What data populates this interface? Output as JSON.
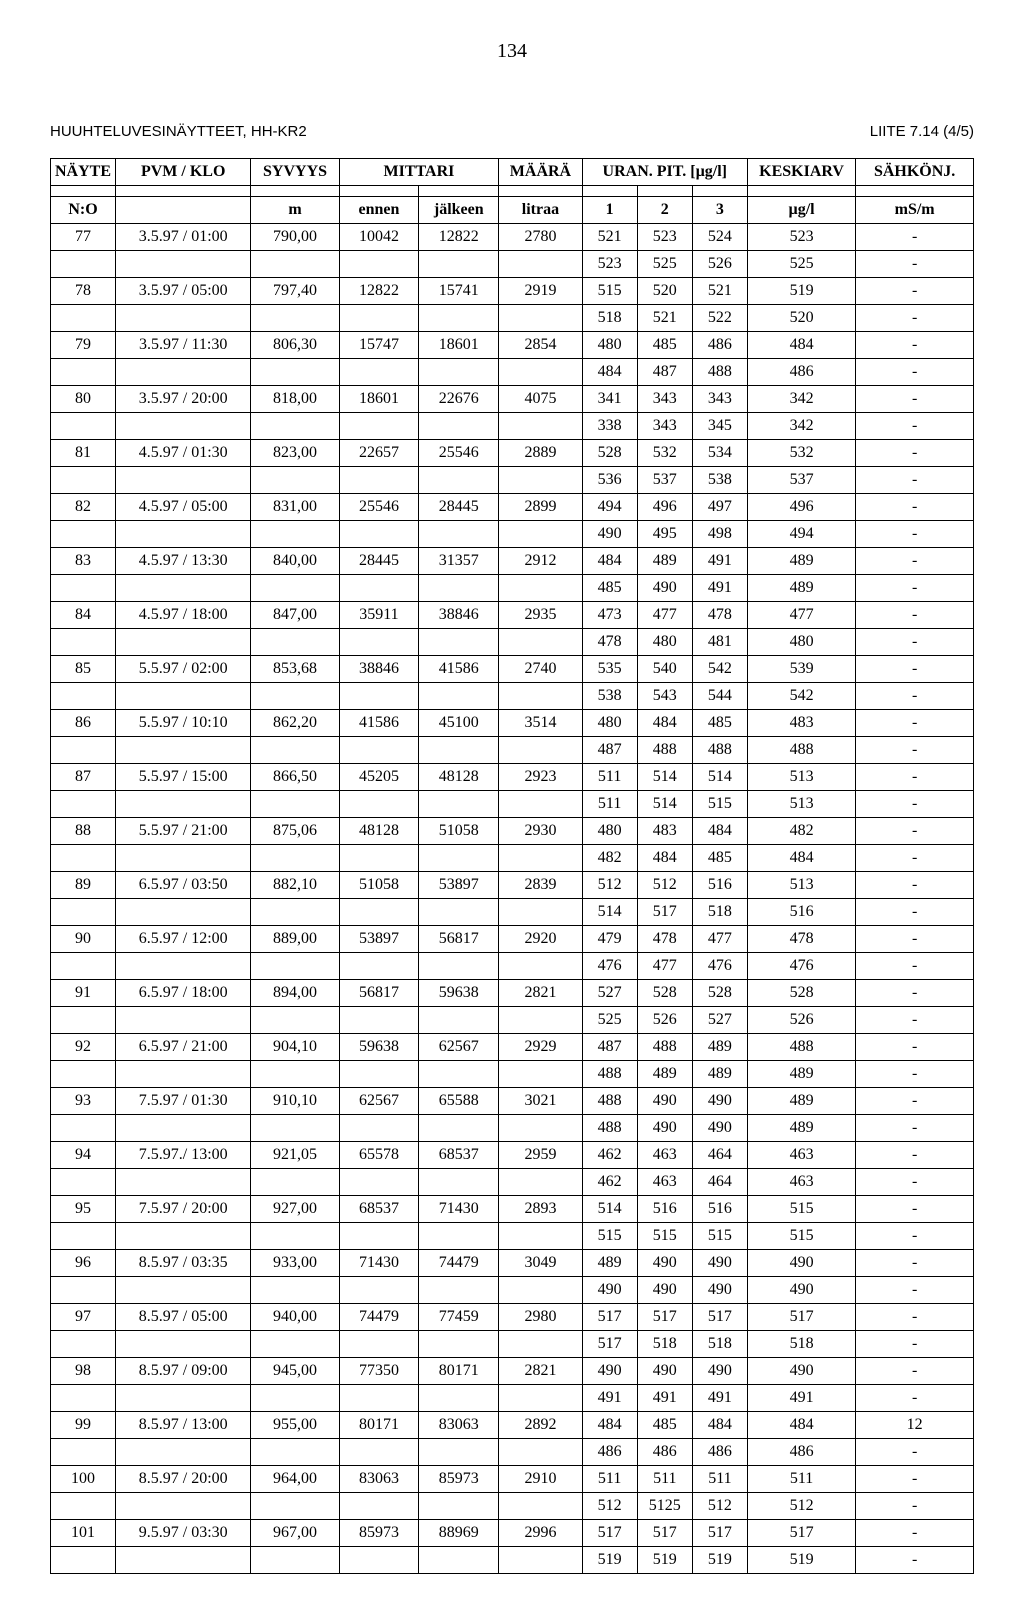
{
  "pageNumber": "134",
  "docTitle": "HUUHTELUVESINÄYTTEET, HH-KR2",
  "annex": "LIITE 7.14 (4/5)",
  "headers": {
    "nayte": "NÄYTE",
    "pvm": "PVM / KLO",
    "syvyys": "SYVYYS",
    "mittari": "MITTARI",
    "maara": "MÄÄRÄ",
    "uran": "URAN. PIT. [µg/l]",
    "keskiarv": "KESKIARV",
    "sahkonj": "SÄHKÖNJ.",
    "no": "N:O",
    "m": "m",
    "ennen": "ennen",
    "jalkeen": "jälkeen",
    "litraa": "litraa",
    "c1": "1",
    "c2": "2",
    "c3": "3",
    "ugl": "µg/l",
    "msm": "mS/m"
  },
  "rows": [
    {
      "no": "77",
      "pvm": "3.5.97 / 01:00",
      "syv": "790,00",
      "ennen": "10042",
      "jalkeen": "12822",
      "maara": "2780",
      "u1": "521",
      "u2": "523",
      "u3": "524",
      "kesk": "523",
      "sah": "-"
    },
    {
      "no": "",
      "pvm": "",
      "syv": "",
      "ennen": "",
      "jalkeen": "",
      "maara": "",
      "u1": "523",
      "u2": "525",
      "u3": "526",
      "kesk": "525",
      "sah": "-"
    },
    {
      "no": "78",
      "pvm": "3.5.97 / 05:00",
      "syv": "797,40",
      "ennen": "12822",
      "jalkeen": "15741",
      "maara": "2919",
      "u1": "515",
      "u2": "520",
      "u3": "521",
      "kesk": "519",
      "sah": "-"
    },
    {
      "no": "",
      "pvm": "",
      "syv": "",
      "ennen": "",
      "jalkeen": "",
      "maara": "",
      "u1": "518",
      "u2": "521",
      "u3": "522",
      "kesk": "520",
      "sah": "-"
    },
    {
      "no": "79",
      "pvm": "3.5.97 / 11:30",
      "syv": "806,30",
      "ennen": "15747",
      "jalkeen": "18601",
      "maara": "2854",
      "u1": "480",
      "u2": "485",
      "u3": "486",
      "kesk": "484",
      "sah": "-"
    },
    {
      "no": "",
      "pvm": "",
      "syv": "",
      "ennen": "",
      "jalkeen": "",
      "maara": "",
      "u1": "484",
      "u2": "487",
      "u3": "488",
      "kesk": "486",
      "sah": "-"
    },
    {
      "no": "80",
      "pvm": "3.5.97 / 20:00",
      "syv": "818,00",
      "ennen": "18601",
      "jalkeen": "22676",
      "maara": "4075",
      "u1": "341",
      "u2": "343",
      "u3": "343",
      "kesk": "342",
      "sah": "-"
    },
    {
      "no": "",
      "pvm": "",
      "syv": "",
      "ennen": "",
      "jalkeen": "",
      "maara": "",
      "u1": "338",
      "u2": "343",
      "u3": "345",
      "kesk": "342",
      "sah": "-"
    },
    {
      "no": "81",
      "pvm": "4.5.97 / 01:30",
      "syv": "823,00",
      "ennen": "22657",
      "jalkeen": "25546",
      "maara": "2889",
      "u1": "528",
      "u2": "532",
      "u3": "534",
      "kesk": "532",
      "sah": "-"
    },
    {
      "no": "",
      "pvm": "",
      "syv": "",
      "ennen": "",
      "jalkeen": "",
      "maara": "",
      "u1": "536",
      "u2": "537",
      "u3": "538",
      "kesk": "537",
      "sah": "-"
    },
    {
      "no": "82",
      "pvm": "4.5.97 / 05:00",
      "syv": "831,00",
      "ennen": "25546",
      "jalkeen": "28445",
      "maara": "2899",
      "u1": "494",
      "u2": "496",
      "u3": "497",
      "kesk": "496",
      "sah": "-"
    },
    {
      "no": "",
      "pvm": "",
      "syv": "",
      "ennen": "",
      "jalkeen": "",
      "maara": "",
      "u1": "490",
      "u2": "495",
      "u3": "498",
      "kesk": "494",
      "sah": "-"
    },
    {
      "no": "83",
      "pvm": "4.5.97 / 13:30",
      "syv": "840,00",
      "ennen": "28445",
      "jalkeen": "31357",
      "maara": "2912",
      "u1": "484",
      "u2": "489",
      "u3": "491",
      "kesk": "489",
      "sah": "-"
    },
    {
      "no": "",
      "pvm": "",
      "syv": "",
      "ennen": "",
      "jalkeen": "",
      "maara": "",
      "u1": "485",
      "u2": "490",
      "u3": "491",
      "kesk": "489",
      "sah": "-"
    },
    {
      "no": "84",
      "pvm": "4.5.97 / 18:00",
      "syv": "847,00",
      "ennen": "35911",
      "jalkeen": "38846",
      "maara": "2935",
      "u1": "473",
      "u2": "477",
      "u3": "478",
      "kesk": "477",
      "sah": "-"
    },
    {
      "no": "",
      "pvm": "",
      "syv": "",
      "ennen": "",
      "jalkeen": "",
      "maara": "",
      "u1": "478",
      "u2": "480",
      "u3": "481",
      "kesk": "480",
      "sah": "-"
    },
    {
      "no": "85",
      "pvm": "5.5.97 / 02:00",
      "syv": "853,68",
      "ennen": "38846",
      "jalkeen": "41586",
      "maara": "2740",
      "u1": "535",
      "u2": "540",
      "u3": "542",
      "kesk": "539",
      "sah": "-"
    },
    {
      "no": "",
      "pvm": "",
      "syv": "",
      "ennen": "",
      "jalkeen": "",
      "maara": "",
      "u1": "538",
      "u2": "543",
      "u3": "544",
      "kesk": "542",
      "sah": "-"
    },
    {
      "no": "86",
      "pvm": "5.5.97 / 10:10",
      "syv": "862,20",
      "ennen": "41586",
      "jalkeen": "45100",
      "maara": "3514",
      "u1": "480",
      "u2": "484",
      "u3": "485",
      "kesk": "483",
      "sah": "-"
    },
    {
      "no": "",
      "pvm": "",
      "syv": "",
      "ennen": "",
      "jalkeen": "",
      "maara": "",
      "u1": "487",
      "u2": "488",
      "u3": "488",
      "kesk": "488",
      "sah": "-"
    },
    {
      "no": "87",
      "pvm": "5.5.97 / 15:00",
      "syv": "866,50",
      "ennen": "45205",
      "jalkeen": "48128",
      "maara": "2923",
      "u1": "511",
      "u2": "514",
      "u3": "514",
      "kesk": "513",
      "sah": "-"
    },
    {
      "no": "",
      "pvm": "",
      "syv": "",
      "ennen": "",
      "jalkeen": "",
      "maara": "",
      "u1": "511",
      "u2": "514",
      "u3": "515",
      "kesk": "513",
      "sah": "-"
    },
    {
      "no": "88",
      "pvm": "5.5.97 / 21:00",
      "syv": "875,06",
      "ennen": "48128",
      "jalkeen": "51058",
      "maara": "2930",
      "u1": "480",
      "u2": "483",
      "u3": "484",
      "kesk": "482",
      "sah": "-"
    },
    {
      "no": "",
      "pvm": "",
      "syv": "",
      "ennen": "",
      "jalkeen": "",
      "maara": "",
      "u1": "482",
      "u2": "484",
      "u3": "485",
      "kesk": "484",
      "sah": "-"
    },
    {
      "no": "89",
      "pvm": "6.5.97 / 03:50",
      "syv": "882,10",
      "ennen": "51058",
      "jalkeen": "53897",
      "maara": "2839",
      "u1": "512",
      "u2": "512",
      "u3": "516",
      "kesk": "513",
      "sah": "-"
    },
    {
      "no": "",
      "pvm": "",
      "syv": "",
      "ennen": "",
      "jalkeen": "",
      "maara": "",
      "u1": "514",
      "u2": "517",
      "u3": "518",
      "kesk": "516",
      "sah": "-"
    },
    {
      "no": "90",
      "pvm": "6.5.97 / 12:00",
      "syv": "889,00",
      "ennen": "53897",
      "jalkeen": "56817",
      "maara": "2920",
      "u1": "479",
      "u2": "478",
      "u3": "477",
      "kesk": "478",
      "sah": "-"
    },
    {
      "no": "",
      "pvm": "",
      "syv": "",
      "ennen": "",
      "jalkeen": "",
      "maara": "",
      "u1": "476",
      "u2": "477",
      "u3": "476",
      "kesk": "476",
      "sah": "-"
    },
    {
      "no": "91",
      "pvm": "6.5.97 / 18:00",
      "syv": "894,00",
      "ennen": "56817",
      "jalkeen": "59638",
      "maara": "2821",
      "u1": "527",
      "u2": "528",
      "u3": "528",
      "kesk": "528",
      "sah": "-"
    },
    {
      "no": "",
      "pvm": "",
      "syv": "",
      "ennen": "",
      "jalkeen": "",
      "maara": "",
      "u1": "525",
      "u2": "526",
      "u3": "527",
      "kesk": "526",
      "sah": "-"
    },
    {
      "no": "92",
      "pvm": "6.5.97 / 21:00",
      "syv": "904,10",
      "ennen": "59638",
      "jalkeen": "62567",
      "maara": "2929",
      "u1": "487",
      "u2": "488",
      "u3": "489",
      "kesk": "488",
      "sah": "-"
    },
    {
      "no": "",
      "pvm": "",
      "syv": "",
      "ennen": "",
      "jalkeen": "",
      "maara": "",
      "u1": "488",
      "u2": "489",
      "u3": "489",
      "kesk": "489",
      "sah": "-"
    },
    {
      "no": "93",
      "pvm": "7.5.97 / 01:30",
      "syv": "910,10",
      "ennen": "62567",
      "jalkeen": "65588",
      "maara": "3021",
      "u1": "488",
      "u2": "490",
      "u3": "490",
      "kesk": "489",
      "sah": "-"
    },
    {
      "no": "",
      "pvm": "",
      "syv": "",
      "ennen": "",
      "jalkeen": "",
      "maara": "",
      "u1": "488",
      "u2": "490",
      "u3": "490",
      "kesk": "489",
      "sah": "-"
    },
    {
      "no": "94",
      "pvm": "7.5.97./ 13:00",
      "syv": "921,05",
      "ennen": "65578",
      "jalkeen": "68537",
      "maara": "2959",
      "u1": "462",
      "u2": "463",
      "u3": "464",
      "kesk": "463",
      "sah": "-"
    },
    {
      "no": "",
      "pvm": "",
      "syv": "",
      "ennen": "",
      "jalkeen": "",
      "maara": "",
      "u1": "462",
      "u2": "463",
      "u3": "464",
      "kesk": "463",
      "sah": "-"
    },
    {
      "no": "95",
      "pvm": "7.5.97 / 20:00",
      "syv": "927,00",
      "ennen": "68537",
      "jalkeen": "71430",
      "maara": "2893",
      "u1": "514",
      "u2": "516",
      "u3": "516",
      "kesk": "515",
      "sah": "-"
    },
    {
      "no": "",
      "pvm": "",
      "syv": "",
      "ennen": "",
      "jalkeen": "",
      "maara": "",
      "u1": "515",
      "u2": "515",
      "u3": "515",
      "kesk": "515",
      "sah": "-"
    },
    {
      "no": "96",
      "pvm": "8.5.97 / 03:35",
      "syv": "933,00",
      "ennen": "71430",
      "jalkeen": "74479",
      "maara": "3049",
      "u1": "489",
      "u2": "490",
      "u3": "490",
      "kesk": "490",
      "sah": "-"
    },
    {
      "no": "",
      "pvm": "",
      "syv": "",
      "ennen": "",
      "jalkeen": "",
      "maara": "",
      "u1": "490",
      "u2": "490",
      "u3": "490",
      "kesk": "490",
      "sah": "-"
    },
    {
      "no": "97",
      "pvm": "8.5.97 / 05:00",
      "syv": "940,00",
      "ennen": "74479",
      "jalkeen": "77459",
      "maara": "2980",
      "u1": "517",
      "u2": "517",
      "u3": "517",
      "kesk": "517",
      "sah": "-"
    },
    {
      "no": "",
      "pvm": "",
      "syv": "",
      "ennen": "",
      "jalkeen": "",
      "maara": "",
      "u1": "517",
      "u2": "518",
      "u3": "518",
      "kesk": "518",
      "sah": "-"
    },
    {
      "no": "98",
      "pvm": "8.5.97 / 09:00",
      "syv": "945,00",
      "ennen": "77350",
      "jalkeen": "80171",
      "maara": "2821",
      "u1": "490",
      "u2": "490",
      "u3": "490",
      "kesk": "490",
      "sah": "-"
    },
    {
      "no": "",
      "pvm": "",
      "syv": "",
      "ennen": "",
      "jalkeen": "",
      "maara": "",
      "u1": "491",
      "u2": "491",
      "u3": "491",
      "kesk": "491",
      "sah": "-"
    },
    {
      "no": "99",
      "pvm": "8.5.97 / 13:00",
      "syv": "955,00",
      "ennen": "80171",
      "jalkeen": "83063",
      "maara": "2892",
      "u1": "484",
      "u2": "485",
      "u3": "484",
      "kesk": "484",
      "sah": "12"
    },
    {
      "no": "",
      "pvm": "",
      "syv": "",
      "ennen": "",
      "jalkeen": "",
      "maara": "",
      "u1": "486",
      "u2": "486",
      "u3": "486",
      "kesk": "486",
      "sah": "-"
    },
    {
      "no": "100",
      "pvm": "8.5.97 / 20:00",
      "syv": "964,00",
      "ennen": "83063",
      "jalkeen": "85973",
      "maara": "2910",
      "u1": "511",
      "u2": "511",
      "u3": "511",
      "kesk": "511",
      "sah": "-"
    },
    {
      "no": "",
      "pvm": "",
      "syv": "",
      "ennen": "",
      "jalkeen": "",
      "maara": "",
      "u1": "512",
      "u2": "5125",
      "u3": "512",
      "kesk": "512",
      "sah": "-"
    },
    {
      "no": "101",
      "pvm": "9.5.97 / 03:30",
      "syv": "967,00",
      "ennen": "85973",
      "jalkeen": "88969",
      "maara": "2996",
      "u1": "517",
      "u2": "517",
      "u3": "517",
      "kesk": "517",
      "sah": "-"
    },
    {
      "no": "",
      "pvm": "",
      "syv": "",
      "ennen": "",
      "jalkeen": "",
      "maara": "",
      "u1": "519",
      "u2": "519",
      "u3": "519",
      "kesk": "519",
      "sah": "-"
    }
  ]
}
